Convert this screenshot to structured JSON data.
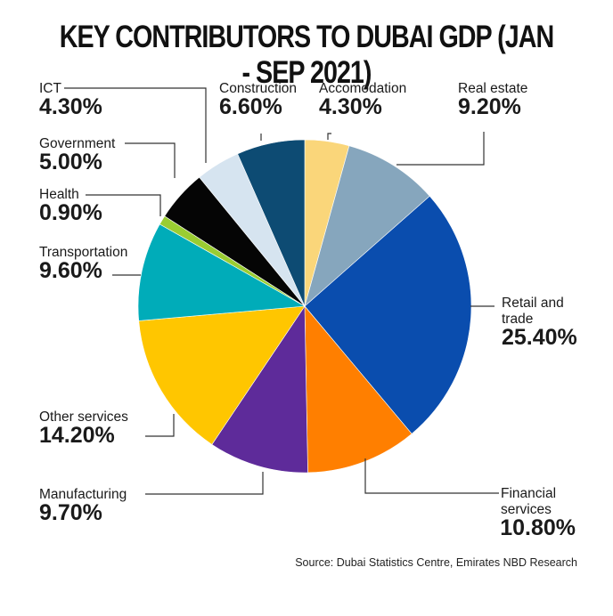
{
  "chart_data": {
    "type": "pie",
    "title": "KEY CONTRIBUTORS TO DUBAI GDP (JAN - SEP 2021)",
    "source": "Source: Dubai Statistics Centre, Emirates NBD Research",
    "unit": "%",
    "start_angle_deg": 0,
    "direction": "clockwise",
    "slices": [
      {
        "name": "Accomodation",
        "value": 4.3,
        "label": "4.30%",
        "color": "#FAD67A"
      },
      {
        "name": "Real estate",
        "value": 9.2,
        "label": "9.20%",
        "color": "#86A6BD"
      },
      {
        "name": "Retail and trade",
        "value": 25.4,
        "label": "25.40%",
        "color": "#0A4DAE"
      },
      {
        "name": "Financial services",
        "value": 10.8,
        "label": "10.80%",
        "color": "#FF7F00"
      },
      {
        "name": "Manufacturing",
        "value": 9.7,
        "label": "9.70%",
        "color": "#5E2B9A"
      },
      {
        "name": "Other services",
        "value": 14.2,
        "label": "14.20%",
        "color": "#FFC600"
      },
      {
        "name": "Transportation",
        "value": 9.6,
        "label": "9.60%",
        "color": "#00ACB9"
      },
      {
        "name": "Health",
        "value": 0.9,
        "label": "0.90%",
        "color": "#9ACD32"
      },
      {
        "name": "Government",
        "value": 5.0,
        "label": "5.00%",
        "color": "#050505"
      },
      {
        "name": "ICT",
        "value": 4.3,
        "label": "4.30%",
        "color": "#D6E4F0"
      },
      {
        "name": "Construction",
        "value": 6.6,
        "label": "6.60%",
        "color": "#0D4B73"
      }
    ]
  }
}
